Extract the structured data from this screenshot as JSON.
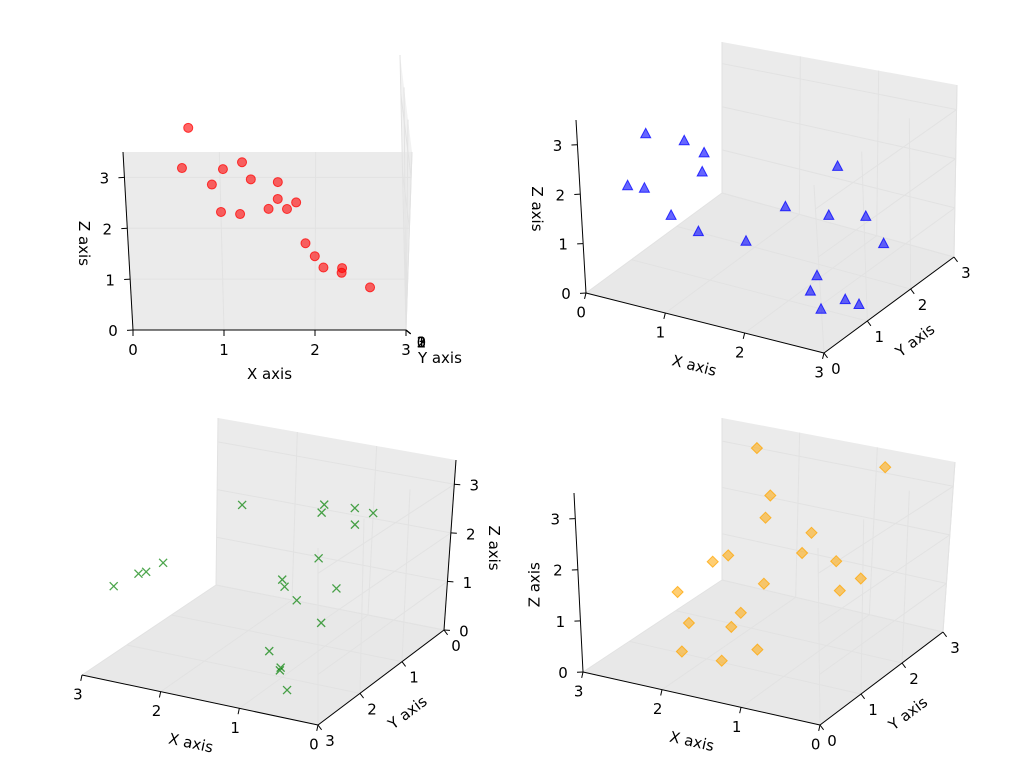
{
  "chart_data": [
    {
      "type": "scatter",
      "marker": "circle",
      "color": "#ff0000",
      "xlabel": "X axis",
      "ylabel": "Y axis",
      "zlabel": "Z axis",
      "x_ticks": [
        "0",
        "1",
        "2",
        "3"
      ],
      "y_ticks": [
        "0",
        "1",
        "2",
        "3"
      ],
      "z_ticks": [
        "0",
        "1",
        "2",
        "3"
      ],
      "xlim": [
        0,
        3
      ],
      "ylim": [
        0,
        3
      ],
      "zlim": [
        0,
        3.5
      ],
      "view": {
        "elev": 30,
        "azim": 0
      },
      "grid": true,
      "points": [
        {
          "x": 0.6,
          "y": 0.15,
          "z": 3.1
        },
        {
          "x": 0.9,
          "y": 0.55,
          "z": 2.6
        },
        {
          "x": 1.0,
          "y": 0.05,
          "z": 2.3
        },
        {
          "x": 1.2,
          "y": 0.2,
          "z": 2.2
        },
        {
          "x": 1.5,
          "y": 1.05,
          "z": 2.0
        },
        {
          "x": 1.6,
          "y": 1.25,
          "z": 2.1
        },
        {
          "x": 1.8,
          "y": 1.4,
          "z": 2.0
        },
        {
          "x": 1.0,
          "y": 1.75,
          "z": 2.4
        },
        {
          "x": 0.6,
          "y": 2.6,
          "z": 2.7
        },
        {
          "x": 1.2,
          "y": 2.75,
          "z": 2.2
        },
        {
          "x": 1.7,
          "y": 2.2,
          "z": 1.7
        },
        {
          "x": 1.3,
          "y": 2.45,
          "z": 2.05
        },
        {
          "x": 1.6,
          "y": 2.5,
          "z": 2.0
        },
        {
          "x": 1.9,
          "y": 1.45,
          "z": 1.35
        },
        {
          "x": 2.0,
          "y": 1.15,
          "z": 1.2
        },
        {
          "x": 2.3,
          "y": 1.55,
          "z": 0.95
        },
        {
          "x": 2.6,
          "y": 0.65,
          "z": 0.75
        },
        {
          "x": 2.1,
          "y": 2.95,
          "z": 0.8
        },
        {
          "x": 2.3,
          "y": 2.75,
          "z": 0.75
        }
      ]
    },
    {
      "type": "scatter",
      "marker": "triangle",
      "color": "#0000ff",
      "xlabel": "X axis",
      "ylabel": "Y axis",
      "zlabel": "Z axis",
      "x_ticks": [
        "0",
        "1",
        "2",
        "3"
      ],
      "y_ticks": [
        "0",
        "1",
        "2",
        "3"
      ],
      "z_ticks": [
        "0",
        "1",
        "2",
        "3"
      ],
      "xlim": [
        0,
        3
      ],
      "ylim": [
        0,
        3
      ],
      "zlim": [
        0,
        3.5
      ],
      "view": {
        "elev": 30,
        "azim": 30
      },
      "grid": true,
      "points": [
        {
          "x": 0.3,
          "y": 0.5,
          "z": 2.0
        },
        {
          "x": 0.7,
          "y": 0.2,
          "z": 2.3
        },
        {
          "x": 0.5,
          "y": 0.6,
          "z": 3.1
        },
        {
          "x": 0.8,
          "y": 0.9,
          "z": 2.9
        },
        {
          "x": 1.2,
          "y": 0.6,
          "z": 2.6
        },
        {
          "x": 0.8,
          "y": 1.3,
          "z": 2.4
        },
        {
          "x": 1.6,
          "y": 0.8,
          "z": 1.2
        },
        {
          "x": 1.7,
          "y": 1.5,
          "z": 1.5
        },
        {
          "x": 1.9,
          "y": 2.1,
          "z": 1.0
        },
        {
          "x": 2.2,
          "y": 2.4,
          "z": 0.9
        },
        {
          "x": 2.6,
          "y": 2.1,
          "z": 0.7
        },
        {
          "x": 0.9,
          "y": 0.4,
          "z": 1.7
        },
        {
          "x": 1.3,
          "y": 0.3,
          "z": 1.6
        },
        {
          "x": 1.9,
          "y": 2.3,
          "z": 1.9
        },
        {
          "x": 2.2,
          "y": 1.3,
          "z": 0.4
        },
        {
          "x": 2.4,
          "y": 0.8,
          "z": 0.5
        },
        {
          "x": 2.7,
          "y": 0.5,
          "z": 0.45
        },
        {
          "x": 2.9,
          "y": 1.0,
          "z": 0.3
        },
        {
          "x": 2.9,
          "y": 0.7,
          "z": 0.6
        }
      ]
    },
    {
      "type": "scatter",
      "marker": "x",
      "color": "#008000",
      "xlabel": "X axis",
      "ylabel": "Y axis",
      "zlabel": "Z axis",
      "x_ticks": [
        "0",
        "1",
        "2",
        "3"
      ],
      "y_ticks": [
        "0",
        "1",
        "2",
        "3"
      ],
      "z_ticks": [
        "0",
        "1",
        "2",
        "3"
      ],
      "xlim": [
        0,
        3
      ],
      "ylim": [
        0,
        3
      ],
      "zlim": [
        0,
        3.5
      ],
      "view": {
        "elev": 30,
        "azim": -120
      },
      "grid": true,
      "points": [
        {
          "x": 2.5,
          "y": 0.3,
          "z": 2.0
        },
        {
          "x": 1.6,
          "y": 0.1,
          "z": 2.0
        },
        {
          "x": 1.4,
          "y": 0.4,
          "z": 2.4
        },
        {
          "x": 0.9,
          "y": 0.6,
          "z": 2.6
        },
        {
          "x": 0.5,
          "y": 0.9,
          "z": 2.8
        },
        {
          "x": 0.5,
          "y": 1.3,
          "z": 2.8
        },
        {
          "x": 2.8,
          "y": 1.5,
          "z": 1.4
        },
        {
          "x": 2.9,
          "y": 1.7,
          "z": 1.3
        },
        {
          "x": 2.7,
          "y": 2.2,
          "z": 1.6
        },
        {
          "x": 2.9,
          "y": 2.4,
          "z": 1.4
        },
        {
          "x": 1.4,
          "y": 1.3,
          "z": 1.4
        },
        {
          "x": 1.1,
          "y": 1.5,
          "z": 1.2
        },
        {
          "x": 1.2,
          "y": 1.6,
          "z": 1.5
        },
        {
          "x": 1.0,
          "y": 1.2,
          "z": 1.9
        },
        {
          "x": 0.6,
          "y": 1.5,
          "z": 1.6
        },
        {
          "x": 0.4,
          "y": 2.2,
          "z": 1.4
        },
        {
          "x": 1.0,
          "y": 2.3,
          "z": 0.7
        },
        {
          "x": 0.8,
          "y": 2.4,
          "z": 0.5
        },
        {
          "x": 0.7,
          "y": 2.6,
          "z": 0.6
        },
        {
          "x": 0.5,
          "y": 2.8,
          "z": 0.4
        }
      ]
    },
    {
      "type": "scatter",
      "marker": "diamond",
      "color": "#ffa500",
      "xlabel": "X axis",
      "ylabel": "Y axis",
      "zlabel": "Z axis",
      "x_ticks": [
        "0",
        "1",
        "2",
        "3"
      ],
      "y_ticks": [
        "0",
        "1",
        "2",
        "3"
      ],
      "z_ticks": [
        "0",
        "1",
        "2",
        "3"
      ],
      "xlim": [
        0,
        3
      ],
      "ylim": [
        0,
        3
      ],
      "zlim": [
        0,
        3.5
      ],
      "view": {
        "elev": 30,
        "azim": -150
      },
      "grid": true,
      "points": [
        {
          "x": 2.3,
          "y": 2.6,
          "z": 3.3
        },
        {
          "x": 0.6,
          "y": 2.5,
          "z": 3.5
        },
        {
          "x": 1.7,
          "y": 1.9,
          "z": 2.9
        },
        {
          "x": 1.7,
          "y": 1.8,
          "z": 2.5
        },
        {
          "x": 1.4,
          "y": 2.3,
          "z": 2.0
        },
        {
          "x": 2.3,
          "y": 2.0,
          "z": 1.4
        },
        {
          "x": 2.2,
          "y": 1.5,
          "z": 1.6
        },
        {
          "x": 1.4,
          "y": 2.1,
          "z": 1.7
        },
        {
          "x": 1.6,
          "y": 1.6,
          "z": 1.3
        },
        {
          "x": 1.3,
          "y": 2.7,
          "z": 1.2
        },
        {
          "x": 1.9,
          "y": 1.6,
          "z": 0.6
        },
        {
          "x": 0.9,
          "y": 2.1,
          "z": 1.1
        },
        {
          "x": 0.8,
          "y": 2.4,
          "z": 1.2
        },
        {
          "x": 1.5,
          "y": 0.7,
          "z": 1.0
        },
        {
          "x": 1.0,
          "y": 0.4,
          "z": 0.9
        },
        {
          "x": 1.4,
          "y": 0.3,
          "z": 0.6
        },
        {
          "x": 2.6,
          "y": 1.4,
          "z": 0.9
        },
        {
          "x": 2.4,
          "y": 1.3,
          "z": 0.4
        },
        {
          "x": 2.2,
          "y": 0.8,
          "z": 0.2
        }
      ]
    }
  ]
}
